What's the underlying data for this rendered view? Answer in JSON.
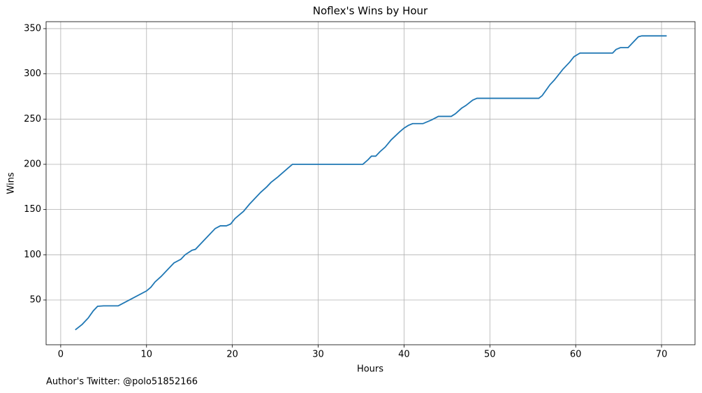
{
  "chart_data": {
    "type": "line",
    "title": "Noflex's Wins by Hour",
    "xlabel": "Hours",
    "ylabel": "Wins",
    "annotation": "Author's Twitter: @polo51852166",
    "color": "#1f77b4",
    "grid": true,
    "xlim": [
      -1.7,
      73.9
    ],
    "ylim": [
      0.5,
      357.7
    ],
    "xticks": [
      0,
      10,
      20,
      30,
      40,
      50,
      60,
      70
    ],
    "yticks": [
      50,
      100,
      150,
      200,
      250,
      300,
      350
    ],
    "x": [
      1.7,
      2.5,
      3.2,
      3.8,
      4.3,
      5,
      6.7,
      7,
      10,
      10.5,
      11,
      11.7,
      12.5,
      13.2,
      14,
      14.5,
      15.3,
      15.7,
      16.3,
      17.2,
      18,
      18.6,
      19.3,
      19.8,
      20.3,
      21.3,
      22,
      22.8,
      23.3,
      24,
      24.5,
      25.3,
      26.5,
      27,
      35.2,
      35.8,
      36.2,
      36.7,
      37.2,
      37.8,
      38.5,
      39.5,
      40,
      40.5,
      41,
      42.2,
      43.2,
      44,
      45.5,
      46,
      46.7,
      47.2,
      48,
      48.5,
      55.7,
      56.1,
      57,
      57.5,
      58.5,
      59.3,
      59.8,
      60.5,
      64.3,
      64.7,
      65.2,
      66.1,
      66.6,
      67.3,
      67.7,
      70.6
    ],
    "values": [
      17,
      23,
      30,
      38,
      43,
      43.5,
      43.5,
      45,
      60,
      64,
      70,
      76,
      84,
      91,
      95,
      100,
      105,
      106,
      112,
      121,
      129,
      132,
      132,
      134,
      140,
      148,
      156,
      164,
      169,
      175,
      180,
      186,
      196,
      200,
      200,
      205,
      209,
      209,
      214,
      219,
      227,
      236,
      240,
      243,
      245,
      245,
      249,
      253,
      253,
      256,
      262,
      265,
      271,
      273,
      273,
      276,
      288,
      293,
      305,
      313,
      319,
      323,
      323,
      327,
      329,
      329,
      334,
      341,
      342,
      342
    ]
  }
}
